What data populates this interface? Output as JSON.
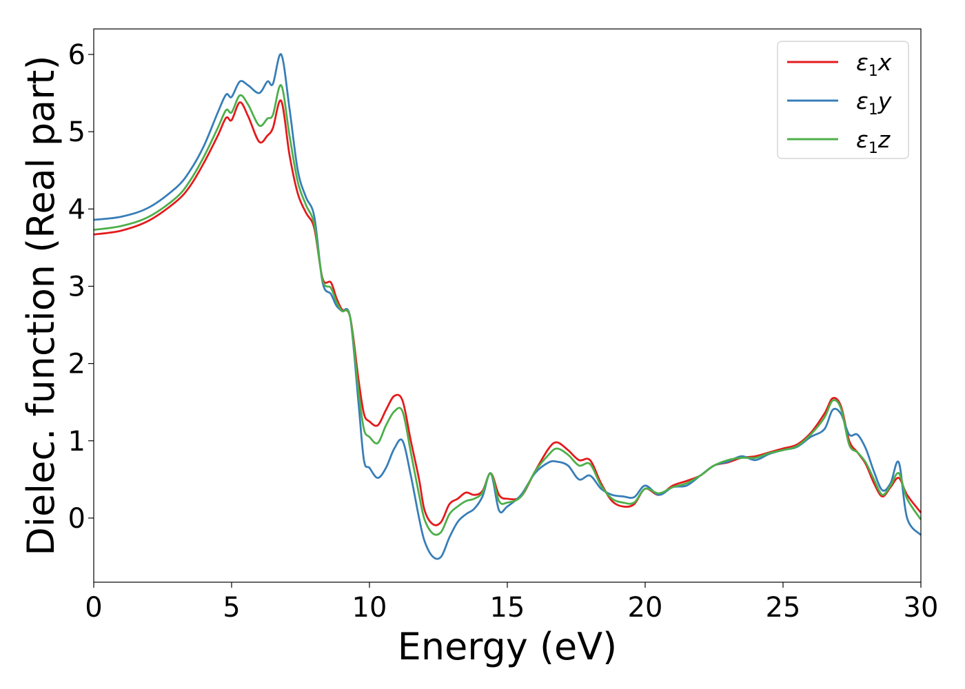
{
  "chart_data": {
    "type": "line",
    "title": "",
    "xlabel": "Energy (eV)",
    "ylabel": "Dielec. function (Real part)",
    "xlim": [
      0,
      30
    ],
    "ylim": [
      -0.83,
      6.33
    ],
    "xticks": [
      0,
      5,
      10,
      15,
      20,
      25,
      30
    ],
    "yticks": [
      0,
      1,
      2,
      3,
      4,
      5,
      6
    ],
    "grid": false,
    "legend_position": "top-right",
    "series": [
      {
        "name": "ε₁x",
        "legend_base": "ε",
        "legend_sub": "1",
        "legend_suffix": "x",
        "color": "#e41a1c",
        "x": [
          0,
          1,
          2,
          3,
          3.5,
          4,
          4.5,
          4.8,
          5.0,
          5.3,
          5.6,
          6.0,
          6.3,
          6.5,
          6.8,
          7.1,
          7.4,
          7.7,
          8.0,
          8.3,
          8.6,
          8.8,
          9.0,
          9.3,
          9.6,
          9.8,
          10.0,
          10.3,
          10.6,
          10.9,
          11.2,
          11.5,
          11.8,
          12.0,
          12.3,
          12.6,
          12.9,
          13.2,
          13.5,
          13.8,
          14.1,
          14.4,
          14.7,
          15.0,
          15.5,
          16.0,
          16.5,
          16.8,
          17.2,
          17.6,
          18.0,
          18.4,
          18.8,
          19.2,
          19.6,
          20.0,
          20.5,
          21.0,
          21.5,
          22.0,
          22.5,
          23.0,
          23.5,
          24.0,
          24.5,
          25.0,
          25.5,
          26.0,
          26.5,
          26.8,
          27.1,
          27.4,
          27.7,
          28.0,
          28.3,
          28.6,
          28.9,
          29.2,
          29.5,
          30.0
        ],
        "y": [
          3.67,
          3.72,
          3.85,
          4.1,
          4.3,
          4.6,
          4.95,
          5.18,
          5.15,
          5.38,
          5.2,
          4.87,
          4.95,
          5.05,
          5.4,
          4.7,
          4.2,
          3.95,
          3.75,
          3.1,
          3.05,
          2.85,
          2.7,
          2.6,
          1.8,
          1.35,
          1.25,
          1.2,
          1.4,
          1.58,
          1.52,
          1.0,
          0.5,
          0.1,
          -0.08,
          -0.05,
          0.18,
          0.25,
          0.33,
          0.3,
          0.35,
          0.58,
          0.3,
          0.25,
          0.28,
          0.6,
          0.9,
          0.98,
          0.88,
          0.75,
          0.75,
          0.45,
          0.22,
          0.15,
          0.18,
          0.38,
          0.3,
          0.42,
          0.48,
          0.55,
          0.68,
          0.72,
          0.78,
          0.8,
          0.85,
          0.9,
          0.95,
          1.1,
          1.35,
          1.55,
          1.45,
          1.0,
          0.85,
          0.7,
          0.45,
          0.28,
          0.4,
          0.52,
          0.3,
          0.07
        ]
      },
      {
        "name": "ε₁y",
        "legend_base": "ε",
        "legend_sub": "1",
        "legend_suffix": "y",
        "color": "#377eb8",
        "x": [
          0,
          1,
          2,
          3,
          3.5,
          4,
          4.5,
          4.8,
          5.0,
          5.3,
          5.6,
          6.0,
          6.3,
          6.5,
          6.8,
          7.1,
          7.4,
          7.7,
          8.0,
          8.3,
          8.6,
          8.8,
          9.0,
          9.3,
          9.6,
          9.8,
          10.0,
          10.3,
          10.6,
          10.9,
          11.2,
          11.5,
          11.8,
          12.0,
          12.3,
          12.6,
          12.9,
          13.2,
          13.5,
          13.8,
          14.1,
          14.4,
          14.7,
          15.0,
          15.5,
          16.0,
          16.5,
          16.8,
          17.2,
          17.6,
          18.0,
          18.4,
          18.8,
          19.2,
          19.6,
          20.0,
          20.5,
          21.0,
          21.5,
          22.0,
          22.5,
          23.0,
          23.5,
          24.0,
          24.5,
          25.0,
          25.5,
          26.0,
          26.5,
          26.8,
          27.1,
          27.4,
          27.7,
          28.0,
          28.3,
          28.6,
          28.9,
          29.2,
          29.5,
          30.0
        ],
        "y": [
          3.86,
          3.9,
          4.02,
          4.28,
          4.5,
          4.82,
          5.25,
          5.48,
          5.45,
          5.65,
          5.6,
          5.5,
          5.65,
          5.62,
          6.0,
          5.3,
          4.5,
          4.15,
          3.9,
          3.05,
          2.9,
          2.75,
          2.68,
          2.6,
          1.5,
          0.75,
          0.65,
          0.52,
          0.65,
          0.9,
          1.0,
          0.55,
          0.0,
          -0.3,
          -0.5,
          -0.5,
          -0.25,
          -0.05,
          0.05,
          0.12,
          0.28,
          0.58,
          0.1,
          0.15,
          0.3,
          0.58,
          0.72,
          0.73,
          0.68,
          0.5,
          0.55,
          0.38,
          0.3,
          0.28,
          0.27,
          0.42,
          0.3,
          0.4,
          0.42,
          0.55,
          0.68,
          0.73,
          0.8,
          0.75,
          0.83,
          0.88,
          0.92,
          1.05,
          1.15,
          1.4,
          1.35,
          1.08,
          1.08,
          0.9,
          0.6,
          0.36,
          0.45,
          0.72,
          0.0,
          -0.22
        ]
      },
      {
        "name": "ε₁z",
        "legend_base": "ε",
        "legend_sub": "1",
        "legend_suffix": "z",
        "color": "#4daf4a",
        "x": [
          0,
          1,
          2,
          3,
          3.5,
          4,
          4.5,
          4.8,
          5.0,
          5.3,
          5.6,
          6.0,
          6.3,
          6.5,
          6.8,
          7.1,
          7.4,
          7.7,
          8.0,
          8.3,
          8.6,
          8.8,
          9.0,
          9.3,
          9.6,
          9.8,
          10.0,
          10.3,
          10.6,
          10.9,
          11.2,
          11.5,
          11.8,
          12.0,
          12.3,
          12.6,
          12.9,
          13.2,
          13.5,
          13.8,
          14.1,
          14.4,
          14.7,
          15.0,
          15.5,
          16.0,
          16.5,
          16.8,
          17.2,
          17.6,
          18.0,
          18.4,
          18.8,
          19.2,
          19.6,
          20.0,
          20.5,
          21.0,
          21.5,
          22.0,
          22.5,
          23.0,
          23.5,
          24.0,
          24.5,
          25.0,
          25.5,
          26.0,
          26.5,
          26.8,
          27.1,
          27.4,
          27.7,
          28.0,
          28.3,
          28.6,
          28.9,
          29.2,
          29.5,
          30.0
        ],
        "y": [
          3.73,
          3.78,
          3.9,
          4.15,
          4.37,
          4.68,
          5.05,
          5.28,
          5.25,
          5.47,
          5.35,
          5.08,
          5.17,
          5.22,
          5.6,
          4.95,
          4.35,
          4.05,
          3.8,
          3.08,
          2.98,
          2.8,
          2.68,
          2.6,
          1.65,
          1.15,
          1.05,
          0.97,
          1.2,
          1.38,
          1.38,
          0.85,
          0.3,
          -0.02,
          -0.2,
          -0.18,
          0.05,
          0.15,
          0.22,
          0.25,
          0.33,
          0.58,
          0.22,
          0.2,
          0.28,
          0.6,
          0.82,
          0.9,
          0.82,
          0.68,
          0.7,
          0.42,
          0.25,
          0.2,
          0.2,
          0.38,
          0.32,
          0.4,
          0.45,
          0.55,
          0.68,
          0.75,
          0.78,
          0.78,
          0.84,
          0.88,
          0.93,
          1.08,
          1.3,
          1.52,
          1.42,
          0.95,
          0.85,
          0.72,
          0.5,
          0.3,
          0.42,
          0.58,
          0.25,
          -0.02
        ]
      }
    ]
  }
}
